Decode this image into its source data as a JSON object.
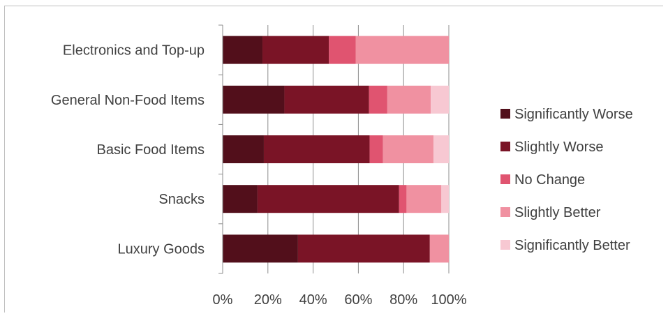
{
  "chart_data": {
    "type": "bar",
    "orientation": "horizontal",
    "stacked": "percent",
    "categories": [
      "Luxury Goods",
      "Snacks",
      "Basic Food Items",
      "General Non-Food Items",
      "Electronics and Top-up"
    ],
    "series": [
      {
        "name": "Significantly Worse",
        "color": "#520f1b",
        "values": [
          33.3,
          15.4,
          18.2,
          27.3,
          17.6
        ]
      },
      {
        "name": "Slightly Worse",
        "color": "#7a1426",
        "values": [
          58.3,
          62.6,
          46.8,
          37.4,
          29.4
        ]
      },
      {
        "name": "No Change",
        "color": "#e05470",
        "values": [
          0.0,
          3.3,
          5.9,
          8.1,
          11.8
        ]
      },
      {
        "name": "Slightly Better",
        "color": "#f091a1",
        "values": [
          8.4,
          15.4,
          22.3,
          19.2,
          41.2
        ]
      },
      {
        "name": "Significantly Better",
        "color": "#f7c8d2",
        "values": [
          0.0,
          3.3,
          6.8,
          8.0,
          0.0
        ]
      }
    ],
    "x_ticks": [
      "0%",
      "20%",
      "40%",
      "60%",
      "80%",
      "100%"
    ],
    "xlim": [
      0,
      100
    ],
    "grid": true,
    "legend_position": "right",
    "title": "",
    "xlabel": "",
    "ylabel": ""
  }
}
